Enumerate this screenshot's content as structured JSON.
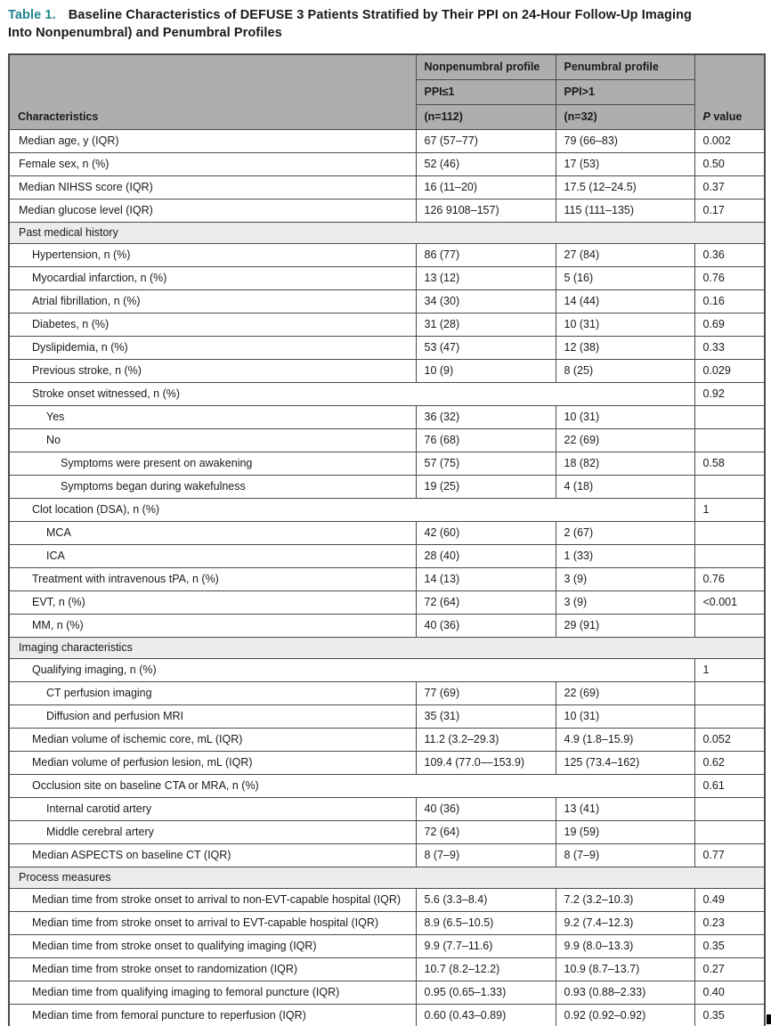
{
  "colors": {
    "accent_teal": "#1f858e",
    "header_bg": "#aeaeb1",
    "section_bg": "#ececec",
    "border_col": "#4b4b4d",
    "text_col": "#1a1a1a"
  },
  "title": {
    "label": "Table 1.",
    "line1": "Baseline Characteristics of DEFUSE 3 Patients Stratified by Their PPI on 24-Hour Follow-Up Imaging",
    "line2": "Into Nonpenumbral) and Penumbral Profiles"
  },
  "header": {
    "characteristics": "Characteristics",
    "group1": {
      "title": "Nonpenumbral profile",
      "sub": "PPI≤1",
      "n": "(n=112)"
    },
    "group2": {
      "title": "Penumbral profile",
      "sub": "PPI>1",
      "n": "(n=32)"
    },
    "p_label": {
      "italic": "P",
      "rest": " value"
    }
  },
  "rows": [
    {
      "type": "data",
      "level": 0,
      "label": "Median age, y (IQR)",
      "c1": "67 (57–77)",
      "c2": "79 (66–83)",
      "p": "0.002"
    },
    {
      "type": "data",
      "level": 0,
      "label": "Female sex, n (%)",
      "c1": "52 (46)",
      "c2": "17 (53)",
      "p": "0.50"
    },
    {
      "type": "data",
      "level": 0,
      "label": "Median NIHSS score (IQR)",
      "c1": "16 (11–20)",
      "c2": "17.5 (12–24.5)",
      "p": "0.37"
    },
    {
      "type": "data",
      "level": 0,
      "label": "Median glucose level (IQR)",
      "c1": "126 9108–157)",
      "c2": "115 (111–135)",
      "p": "0.17"
    },
    {
      "type": "section",
      "label": "Past medical history"
    },
    {
      "type": "data",
      "level": 1,
      "label": "Hypertension, n (%)",
      "c1": "86 (77)",
      "c2": "27 (84)",
      "p": "0.36"
    },
    {
      "type": "data",
      "level": 1,
      "label": "Myocardial infarction, n (%)",
      "c1": "13 (12)",
      "c2": "5 (16)",
      "p": "0.76"
    },
    {
      "type": "data",
      "level": 1,
      "label": "Atrial fibrillation, n (%)",
      "c1": "34 (30)",
      "c2": "14 (44)",
      "p": "0.16"
    },
    {
      "type": "data",
      "level": 1,
      "label": "Diabetes, n (%)",
      "c1": "31 (28)",
      "c2": "10 (31)",
      "p": "0.69"
    },
    {
      "type": "data",
      "level": 1,
      "label": "Dyslipidemia, n (%)",
      "c1": "53 (47)",
      "c2": "12 (38)",
      "p": "0.33"
    },
    {
      "type": "data",
      "level": 1,
      "label": "Previous stroke, n (%)",
      "c1": "10 (9)",
      "c2": "8 (25)",
      "p": "0.029"
    },
    {
      "type": "span",
      "level": 1,
      "label": "Stroke onset witnessed, n (%)",
      "p": "0.92"
    },
    {
      "type": "data",
      "level": 2,
      "label": "Yes",
      "c1": "36 (32)",
      "c2": "10 (31)",
      "p": ""
    },
    {
      "type": "data",
      "level": 2,
      "label": "No",
      "c1": "76 (68)",
      "c2": "22 (69)",
      "p": ""
    },
    {
      "type": "data",
      "level": 3,
      "label": "Symptoms were present on awakening",
      "c1": "57 (75)",
      "c2": "18 (82)",
      "p": "0.58"
    },
    {
      "type": "data",
      "level": 3,
      "label": "Symptoms began during wakefulness",
      "c1": "19 (25)",
      "c2": "4 (18)",
      "p": ""
    },
    {
      "type": "span",
      "level": 1,
      "label": "Clot location (DSA), n (%)",
      "p": "1"
    },
    {
      "type": "data",
      "level": 2,
      "label": "MCA",
      "c1": "42 (60)",
      "c2": "2 (67)",
      "p": ""
    },
    {
      "type": "data",
      "level": 2,
      "label": "ICA",
      "c1": "28 (40)",
      "c2": "1 (33)",
      "p": ""
    },
    {
      "type": "data",
      "level": 1,
      "label": "Treatment with intravenous tPA, n (%)",
      "c1": "14 (13)",
      "c2": "3 (9)",
      "p": "0.76"
    },
    {
      "type": "data",
      "level": 1,
      "label": "EVT, n (%)",
      "c1": "72 (64)",
      "c2": "3 (9)",
      "p": "<0.001"
    },
    {
      "type": "data",
      "level": 1,
      "label": "MM, n (%)",
      "c1": "40 (36)",
      "c2": "29 (91)",
      "p": ""
    },
    {
      "type": "section",
      "label": "Imaging characteristics"
    },
    {
      "type": "span",
      "level": 1,
      "label": "Qualifying imaging, n (%)",
      "p": "1"
    },
    {
      "type": "data",
      "level": 2,
      "label": "CT perfusion imaging",
      "c1": "77 (69)",
      "c2": "22 (69)",
      "p": ""
    },
    {
      "type": "data",
      "level": 2,
      "label": "Diffusion and perfusion MRI",
      "c1": "35 (31)",
      "c2": "10 (31)",
      "p": ""
    },
    {
      "type": "data",
      "level": 1,
      "label": "Median volume of ischemic core, mL (IQR)",
      "c1": "11.2 (3.2–29.3)",
      "c2": "4.9 (1.8–15.9)",
      "p": "0.052"
    },
    {
      "type": "data",
      "level": 1,
      "label": "Median volume of perfusion lesion, mL (IQR)",
      "c1": "109.4 (77.0––153.9)",
      "c2": "125 (73.4–162)",
      "p": "0.62"
    },
    {
      "type": "span",
      "level": 1,
      "label": "Occlusion site on baseline CTA or MRA, n (%)",
      "p": "0.61"
    },
    {
      "type": "data",
      "level": 2,
      "label": "Internal carotid artery",
      "c1": "40 (36)",
      "c2": "13 (41)",
      "p": ""
    },
    {
      "type": "data",
      "level": 2,
      "label": "Middle cerebral artery",
      "c1": "72 (64)",
      "c2": "19 (59)",
      "p": ""
    },
    {
      "type": "data",
      "level": 1,
      "label": "Median ASPECTS on baseline CT (IQR)",
      "c1": "8 (7–9)",
      "c2": "8 (7–9)",
      "p": "0.77"
    },
    {
      "type": "section",
      "label": "Process measures"
    },
    {
      "type": "data",
      "level": 1,
      "label": "Median time from stroke onset to arrival to non-EVT-capable hospital (IQR)",
      "c1": "5.6 (3.3–8.4)",
      "c2": "7.2 (3.2–10.3)",
      "p": "0.49"
    },
    {
      "type": "data",
      "level": 1,
      "label": "Median time from stroke onset to arrival to EVT-capable hospital (IQR)",
      "c1": "8.9 (6.5–10.5)",
      "c2": "9.2 (7.4–12.3)",
      "p": "0.23"
    },
    {
      "type": "data",
      "level": 1,
      "label": "Median time from stroke onset to qualifying imaging (IQR)",
      "c1": "9.9 (7.7–11.6)",
      "c2": "9.9 (8.0–13.3)",
      "p": "0.35"
    },
    {
      "type": "data",
      "level": 1,
      "label": "Median time from stroke onset to randomization (IQR)",
      "c1": "10.7 (8.2–12.2)",
      "c2": "10.9 (8.7–13.7)",
      "p": "0.27"
    },
    {
      "type": "data",
      "level": 1,
      "label": "Median time from qualifying imaging to femoral puncture (IQR)",
      "c1": "0.95 (0.65–1.33)",
      "c2": "0.93 (0.88–2.33)",
      "p": "0.40"
    },
    {
      "type": "data",
      "level": 1,
      "label": "Median time from femoral puncture to reperfusion (IQR)",
      "c1": "0.60 (0.43–0.89)",
      "c2": "0.92 (0.92–0.92)",
      "p": "0.35"
    }
  ]
}
